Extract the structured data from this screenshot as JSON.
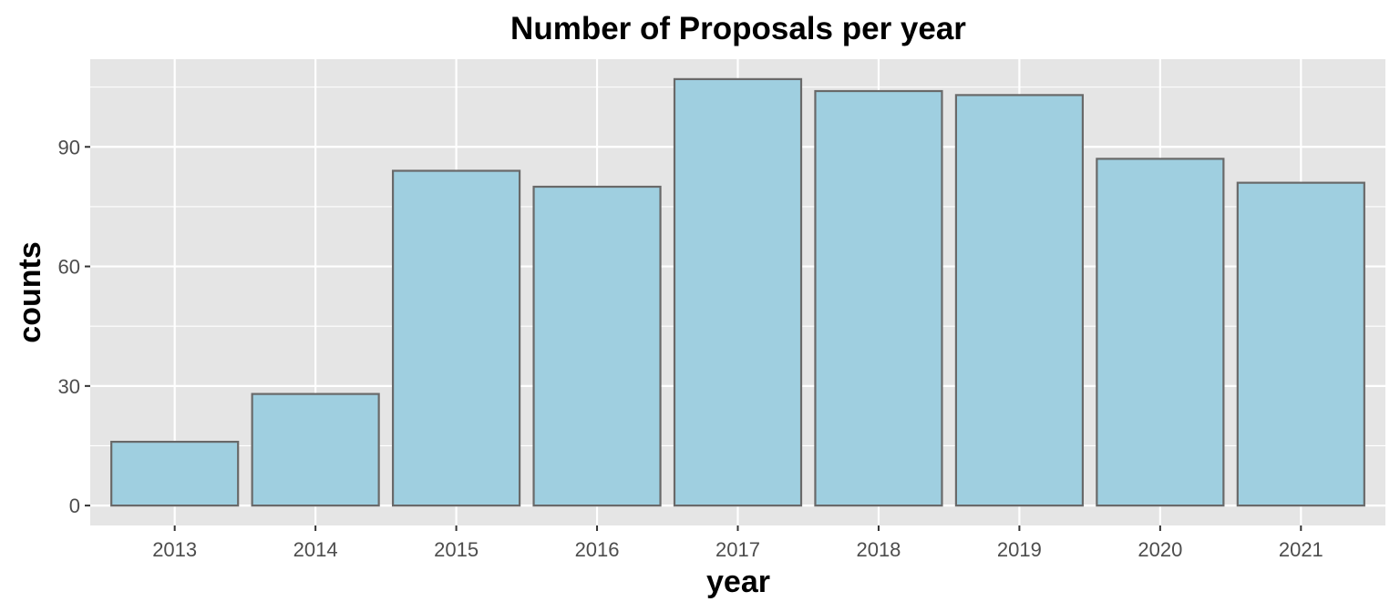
{
  "chart_data": {
    "type": "bar",
    "title": "Number of Proposals per year",
    "xlabel": "year",
    "ylabel": "counts",
    "categories": [
      "2013",
      "2014",
      "2015",
      "2016",
      "2017",
      "2018",
      "2019",
      "2020",
      "2021"
    ],
    "values": [
      16,
      28,
      84,
      80,
      107,
      104,
      103,
      87,
      81
    ],
    "ylim": [
      -5,
      112
    ],
    "yticks": [
      "0",
      "30",
      "60",
      "90"
    ],
    "grid": true,
    "legend": "none",
    "colors": {
      "panel_background": "#e5e5e5",
      "grid": "#ffffff",
      "bar_fill": "#9fcfe0",
      "bar_stroke": "#696969",
      "tick_text": "#4d4d4d",
      "tick_mark": "#333333"
    }
  }
}
